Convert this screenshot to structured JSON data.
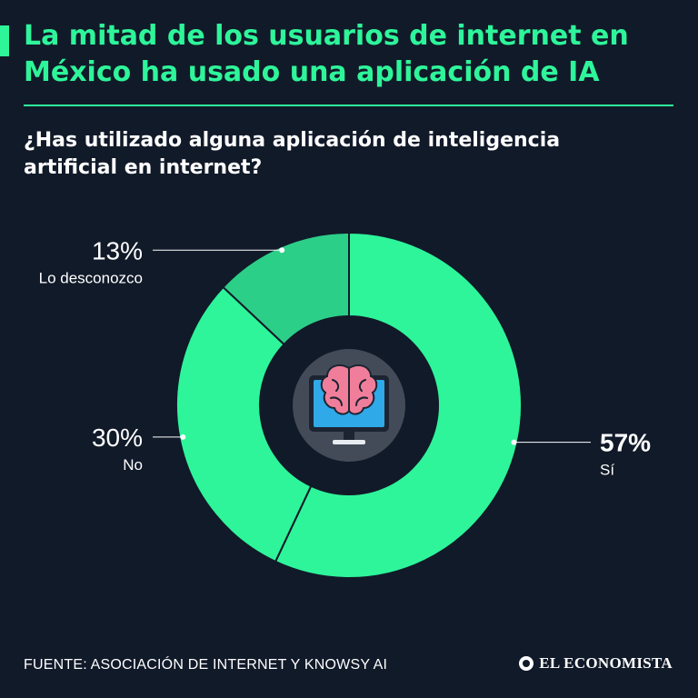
{
  "header": {
    "title": "La mitad de los usuarios de internet en México ha usado una aplicación de IA",
    "question": "¿Has utilizado alguna aplicación de inteligencia artificial en internet?"
  },
  "chart_data": {
    "type": "pie",
    "variant": "donut",
    "title": "¿Has utilizado alguna aplicación de inteligencia artificial en internet?",
    "slices": [
      {
        "label": "Sí",
        "value": 57,
        "display": "57%",
        "color": "#2ef59a",
        "emphasis": true
      },
      {
        "label": "No",
        "value": 30,
        "display": "30%",
        "color": "#2ef59a",
        "emphasis": false
      },
      {
        "label": "Lo desconozco",
        "value": 13,
        "display": "13%",
        "color": "#2ccf88",
        "emphasis": false
      }
    ],
    "center_icon": "brain-monitor-icon"
  },
  "footer": {
    "source": "FUENTE: ASOCIACIÓN DE INTERNET Y KNOWSY AI",
    "brand": "EL ECONOMISTA"
  },
  "colors": {
    "background": "#111a29",
    "accent": "#2ef59a",
    "accent_dark": "#2ccf88",
    "icon_circle": "#424b57",
    "monitor_screen": "#2fa9e8",
    "brain": "#f07e9a"
  }
}
